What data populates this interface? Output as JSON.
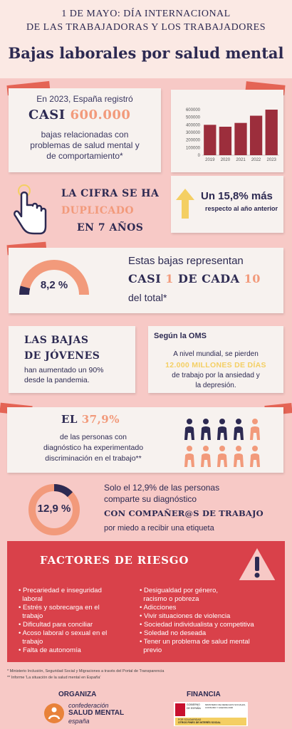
{
  "header": {
    "line1": "1 DE MAYO: DÍA INTERNACIONAL",
    "line2": "DE LAS TRABAJADORAS Y LOS TRABAJADORES",
    "title": "Bajas laborales por salud mental"
  },
  "card1": {
    "line1": "En 2023, España registró",
    "highlight_a": "CASI ",
    "highlight_b": "600.000",
    "line3": "bajas relacionadas con",
    "line4": "problemas de salud mental y",
    "line5": "de comportamiento*"
  },
  "chart_data": {
    "type": "bar",
    "categories": [
      "2019",
      "2020",
      "2021",
      "2022",
      "2023"
    ],
    "values": [
      400000,
      375000,
      425000,
      520000,
      600000
    ],
    "ytick_labels": [
      "0",
      "100000",
      "200000",
      "300000",
      "400000",
      "500000",
      "600000"
    ],
    "ylim": [
      0,
      600000
    ],
    "bar_color": "#9c2e3c"
  },
  "duplicado": {
    "line1": "LA CIFRA SE HA",
    "line2": "DUPLICADO",
    "line3": "EN 7 AÑOS"
  },
  "increase": {
    "value": "Un 15,8% más",
    "sub": "respecto al año anterior"
  },
  "share": {
    "percent_label": "8,2 %",
    "percent": 8.2,
    "line1": "Estas bajas representan",
    "big_a": "CASI ",
    "big_b": "1",
    "big_c": " DE CADA ",
    "big_d": "10",
    "line3": "del total*"
  },
  "jovenes": {
    "line1": "LAS BAJAS",
    "line2": "DE JÓVENES",
    "line3": "han aumentado un 90%",
    "line4": "desde la pandemia."
  },
  "oms": {
    "title": "Según la OMS",
    "line1": "A nivel mundial, se pierden",
    "highlight": "12.000 MILLONES DE DÍAS",
    "line3": "de trabajo por la ansiedad y",
    "line4": "la depresión."
  },
  "discrim": {
    "el": "EL ",
    "pct": "37,9%",
    "line2": "de las personas con",
    "line3": "diagnóstico ha experimentado",
    "line4": "discriminación en el trabajo**",
    "people_total": 10,
    "people_highlighted": 4
  },
  "diagnostico": {
    "percent_label": "12,9 %",
    "percent": 12.9,
    "line1": "Solo el 12,9% de las personas",
    "line2": "comparte su diagnóstico",
    "line3": "CON COMPAÑER@S DE TRABAJO",
    "line4": "por miedo a recibir una etiqueta"
  },
  "factores": {
    "title": "FACTORES DE RIESGO",
    "left": [
      "Precariedad e inseguridad",
      "laboral",
      "Estrés y sobrecarga en el",
      "trabajo",
      "Dificultad para conciliar",
      "Acoso laboral o sexual en el",
      "trabajo",
      "Falta de autonomía"
    ],
    "right": [
      "Desigualdad por género,",
      "racismo o pobreza",
      "Adicciones",
      "Vivir situaciones de violencia",
      "Sociedad individualista y competitiva",
      "Soledad no deseada",
      "Tener un problema de salud mental",
      "previo"
    ]
  },
  "footnotes": {
    "f1": "* Ministerio Inclusión, Seguridad Social y Migraciones a través del Portal de Transparencia",
    "f2": "** Informe 'La situación de la salud mental en España'"
  },
  "organiza": {
    "label": "ORGANIZA",
    "logo_line1": "confederación",
    "logo_line2": "SALUD MENTAL",
    "logo_line3": "españa"
  },
  "financia": {
    "label": "FINANCIA",
    "logo_line1": "GOBIERNO",
    "logo_line2": "DE ESPAÑA",
    "logo_line3": "MINISTERIO DE DERECHOS SOCIALES, CONSUMO Y AGENDA 2030",
    "logo_line4": "POR SOLIDARIDAD",
    "logo_line5": "OTROS FINES DE INTERÉS SOCIAL"
  },
  "colors": {
    "navy": "#2d2a52",
    "peach": "#f29a7b",
    "coral": "#e46455",
    "risk_bg": "#d9414a",
    "bar": "#9c2e3c"
  }
}
